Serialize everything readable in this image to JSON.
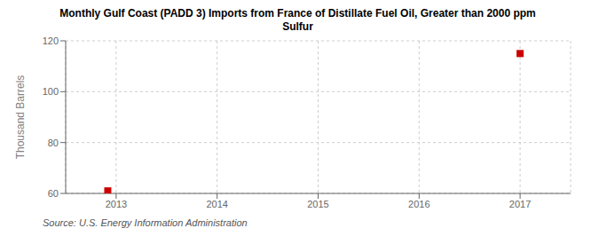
{
  "chart_data": {
    "type": "scatter",
    "title": "Monthly Gulf Coast (PADD 3) Imports from France of Distillate Fuel Oil, Greater than 2000 ppm\nSulfur",
    "y_label": "Thousand Barrels",
    "annotations": [
      "Source: U.S. Energy Information Administration"
    ],
    "x": [
      2012.917,
      2017.0
    ],
    "values": [
      61,
      115
    ],
    "color": "#cc0000",
    "marker": "square",
    "xlim": [
      2012.5,
      2017.5
    ],
    "ylim": [
      60,
      120
    ],
    "xticks": [
      2013,
      2014,
      2015,
      2016,
      2017
    ],
    "yticks": [
      60,
      80,
      100,
      120
    ],
    "grid": true
  }
}
